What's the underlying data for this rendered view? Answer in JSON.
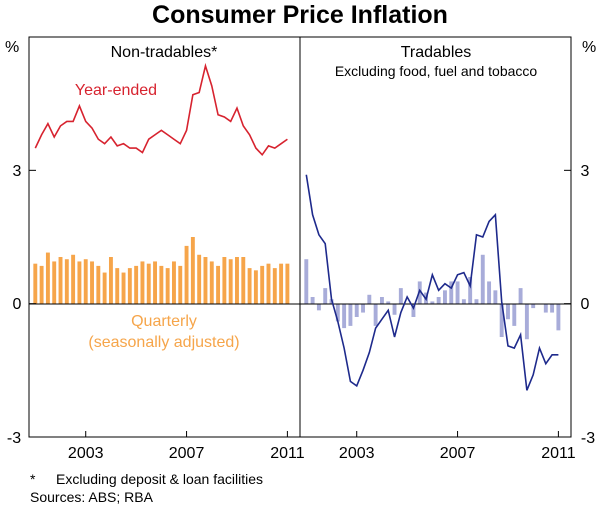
{
  "title": "Consumer Price Inflation",
  "footnote": {
    "marker": "*",
    "text": "Excluding deposit & loan facilities"
  },
  "sources": "Sources: ABS; RBA",
  "colors": {
    "year_ended_nontradables": "#d7232f",
    "quarterly_nontradables": "#f6a54a",
    "year_ended_tradables": "#1e2a8c",
    "quarterly_tradables": "#a8acd9"
  },
  "chart_data": [
    {
      "type": "line",
      "panel_title": "Non-tradables*",
      "y_unit_left": "%",
      "ylim": [
        -3,
        6
      ],
      "yticks": [
        "3",
        "0",
        "-3"
      ],
      "xlim": [
        2001.25,
        2012.0
      ],
      "xticks": [
        2003,
        2007,
        2011
      ],
      "grid": false,
      "series": [
        {
          "name": "Year-ended",
          "type": "line",
          "x": [
            2001.5,
            2001.75,
            2002.0,
            2002.25,
            2002.5,
            2002.75,
            2003.0,
            2003.25,
            2003.5,
            2003.75,
            2004.0,
            2004.25,
            2004.5,
            2004.75,
            2005.0,
            2005.25,
            2005.5,
            2005.75,
            2006.0,
            2006.25,
            2006.5,
            2006.75,
            2007.0,
            2007.25,
            2007.5,
            2007.75,
            2008.0,
            2008.25,
            2008.5,
            2008.75,
            2009.0,
            2009.25,
            2009.5,
            2009.75,
            2010.0,
            2010.25,
            2010.5,
            2010.75,
            2011.0,
            2011.25,
            2011.5
          ],
          "values": [
            3.5,
            3.8,
            4.05,
            3.75,
            4.0,
            4.1,
            4.1,
            4.45,
            4.1,
            3.95,
            3.7,
            3.6,
            3.75,
            3.55,
            3.6,
            3.5,
            3.5,
            3.4,
            3.7,
            3.8,
            3.9,
            3.8,
            3.7,
            3.6,
            3.9,
            4.7,
            4.75,
            5.35,
            4.9,
            4.25,
            4.2,
            4.1,
            4.4,
            4.0,
            3.8,
            3.5,
            3.35,
            3.55,
            3.5,
            3.6,
            3.7
          ]
        },
        {
          "name": "Quarterly (seasonally adjusted)",
          "type": "bar",
          "x": [
            2001.5,
            2001.75,
            2002.0,
            2002.25,
            2002.5,
            2002.75,
            2003.0,
            2003.25,
            2003.5,
            2003.75,
            2004.0,
            2004.25,
            2004.5,
            2004.75,
            2005.0,
            2005.25,
            2005.5,
            2005.75,
            2006.0,
            2006.25,
            2006.5,
            2006.75,
            2007.0,
            2007.25,
            2007.5,
            2007.75,
            2008.0,
            2008.25,
            2008.5,
            2008.75,
            2009.0,
            2009.25,
            2009.5,
            2009.75,
            2010.0,
            2010.25,
            2010.5,
            2010.75,
            2011.0,
            2011.25,
            2011.5
          ],
          "values": [
            0.9,
            0.85,
            1.15,
            0.95,
            1.05,
            1.0,
            1.1,
            0.95,
            1.0,
            0.95,
            0.85,
            0.7,
            1.05,
            0.8,
            0.7,
            0.8,
            0.85,
            0.95,
            0.9,
            0.95,
            0.85,
            0.8,
            0.95,
            0.85,
            1.3,
            1.5,
            1.1,
            1.05,
            0.95,
            0.85,
            1.05,
            1.0,
            1.05,
            1.05,
            0.8,
            0.75,
            0.85,
            0.9,
            0.8,
            0.9,
            0.9
          ]
        }
      ]
    },
    {
      "type": "line",
      "panel_title": "Tradables",
      "panel_subtitle": "Excluding food, fuel and tobacco",
      "y_unit_right": "%",
      "ylim": [
        -3,
        6
      ],
      "yticks": [
        "3",
        "0",
        "-3"
      ],
      "xlim": [
        2001.25,
        2012.0
      ],
      "xticks": [
        2003,
        2007,
        2011
      ],
      "grid": false,
      "series": [
        {
          "name": "Year-ended",
          "type": "line",
          "x": [
            2001.5,
            2001.75,
            2002.0,
            2002.25,
            2002.5,
            2002.75,
            2003.0,
            2003.25,
            2003.5,
            2003.75,
            2004.0,
            2004.25,
            2004.5,
            2004.75,
            2005.0,
            2005.25,
            2005.5,
            2005.75,
            2006.0,
            2006.25,
            2006.5,
            2006.75,
            2007.0,
            2007.25,
            2007.5,
            2007.75,
            2008.0,
            2008.25,
            2008.5,
            2008.75,
            2009.0,
            2009.25,
            2009.5,
            2009.75,
            2010.0,
            2010.25,
            2010.5,
            2010.75,
            2011.0,
            2011.25,
            2011.5
          ],
          "values": [
            2.9,
            2.0,
            1.55,
            1.35,
            0.1,
            -0.4,
            -1.0,
            -1.75,
            -1.85,
            -1.5,
            -1.1,
            -0.55,
            -0.35,
            -0.15,
            -0.75,
            -0.2,
            0.15,
            -0.1,
            0.3,
            0.1,
            0.65,
            0.3,
            0.45,
            0.35,
            0.65,
            0.7,
            0.4,
            1.55,
            1.5,
            1.85,
            2.0,
            0.05,
            -0.95,
            -1.0,
            -0.7,
            -1.95,
            -1.6,
            -1.0,
            -1.35,
            -1.15,
            -1.15
          ]
        },
        {
          "name": "Quarterly",
          "type": "bar",
          "x": [
            2001.5,
            2001.75,
            2002.0,
            2002.25,
            2002.5,
            2002.75,
            2003.0,
            2003.25,
            2003.5,
            2003.75,
            2004.0,
            2004.25,
            2004.5,
            2004.75,
            2005.0,
            2005.25,
            2005.5,
            2005.75,
            2006.0,
            2006.25,
            2006.5,
            2006.75,
            2007.0,
            2007.25,
            2007.5,
            2007.75,
            2008.0,
            2008.25,
            2008.5,
            2008.75,
            2009.0,
            2009.25,
            2009.5,
            2009.75,
            2010.0,
            2010.25,
            2010.5,
            2010.75,
            2011.0,
            2011.25,
            2011.5
          ],
          "values": [
            1.0,
            0.15,
            -0.15,
            0.35,
            0.1,
            -0.4,
            -0.55,
            -0.5,
            -0.3,
            -0.2,
            0.2,
            -0.5,
            0.15,
            0.05,
            -0.25,
            0.35,
            0.0,
            -0.3,
            0.5,
            0.25,
            0.05,
            0.15,
            0.3,
            0.5,
            0.5,
            0.1,
            0.6,
            0.1,
            1.1,
            0.5,
            0.3,
            -0.75,
            -0.35,
            -0.5,
            0.35,
            -0.8,
            -0.1,
            0.0,
            -0.2,
            -0.2,
            -0.6
          ]
        }
      ]
    }
  ],
  "labels": {
    "left_year_ended": "Year-ended",
    "left_quarterly_line1": "Quarterly",
    "left_quarterly_line2": "(seasonally adjusted)"
  }
}
